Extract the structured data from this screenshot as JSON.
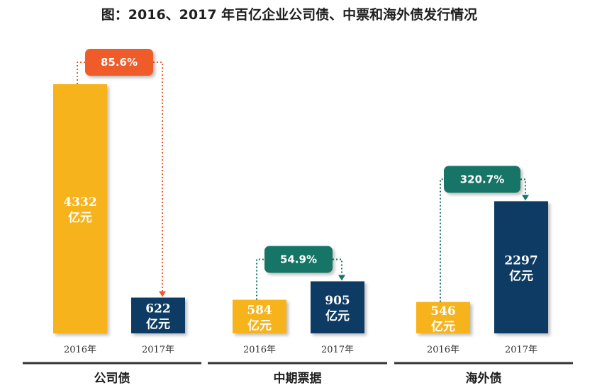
{
  "chart_data": {
    "type": "bar",
    "title": "图：2016、2017 年百亿企业公司债、中票和海外债发行情况",
    "unit": "亿元",
    "colors": {
      "year_2016": "#F6B31A",
      "year_2017": "#0E3A63",
      "decrease": "#EF5B2B",
      "increase": "#167566"
    },
    "groups": [
      {
        "name": "公司债",
        "years": [
          "2016年",
          "2017年"
        ],
        "values": [
          4332,
          622
        ],
        "change_label": "85.6%",
        "trend": "down"
      },
      {
        "name": "中期票据",
        "years": [
          "2016年",
          "2017年"
        ],
        "values": [
          584,
          905
        ],
        "change_label": "54.9%",
        "trend": "up"
      },
      {
        "name": "海外债",
        "years": [
          "2016年",
          "2017年"
        ],
        "values": [
          546,
          2297
        ],
        "change_label": "320.7%",
        "trend": "up"
      }
    ]
  }
}
